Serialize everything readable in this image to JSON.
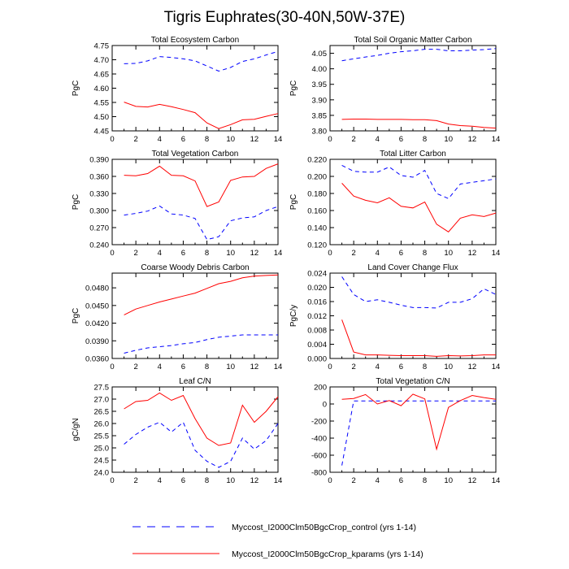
{
  "figure_title": "Tigris Euphrates(30-40N,50W-37E)",
  "legend": [
    {
      "label": "Myccost_I2000Clm50BgcCrop_control (yrs 1-14)",
      "color": "#0000ff",
      "dash": "dashed"
    },
    {
      "label": "Myccost_I2000Clm50BgcCrop_kparams (yrs 1-14)",
      "color": "#ff0000",
      "dash": "solid"
    }
  ],
  "chart_data": [
    {
      "type": "line",
      "title": "Total Ecosystem Carbon",
      "xlabel": "",
      "ylabel": "PgC",
      "xlim": [
        0,
        14
      ],
      "ylim": [
        4.45,
        4.75
      ],
      "xticks": [
        0,
        2,
        4,
        6,
        8,
        10,
        12,
        14
      ],
      "yticks": [
        "4.45",
        "4.50",
        "4.55",
        "4.60",
        "4.65",
        "4.70",
        "4.75"
      ],
      "x": [
        1,
        2,
        3,
        4,
        5,
        6,
        7,
        8,
        9,
        10,
        11,
        12,
        13,
        14
      ],
      "series": [
        {
          "name": "control",
          "values": [
            4.686,
            4.687,
            4.696,
            4.711,
            4.708,
            4.703,
            4.696,
            4.678,
            4.66,
            4.673,
            4.694,
            4.703,
            4.717,
            4.729
          ]
        },
        {
          "name": "kparams",
          "values": [
            4.551,
            4.536,
            4.534,
            4.543,
            4.535,
            4.525,
            4.514,
            4.478,
            4.458,
            4.472,
            4.489,
            4.491,
            4.501,
            4.511
          ]
        }
      ]
    },
    {
      "type": "line",
      "title": "Total Soil Organic Matter Carbon",
      "xlabel": "",
      "ylabel": "PgC",
      "xlim": [
        0,
        14
      ],
      "ylim": [
        3.8,
        4.075
      ],
      "xticks": [
        0,
        2,
        4,
        6,
        8,
        10,
        12,
        14
      ],
      "yticks": [
        "3.80",
        "3.85",
        "3.90",
        "3.95",
        "4.00",
        "4.05"
      ],
      "x": [
        1,
        2,
        3,
        4,
        5,
        6,
        7,
        8,
        9,
        10,
        11,
        12,
        13,
        14
      ],
      "series": [
        {
          "name": "control",
          "values": [
            4.026,
            4.032,
            4.038,
            4.043,
            4.05,
            4.055,
            4.058,
            4.063,
            4.063,
            4.058,
            4.058,
            4.06,
            4.062,
            4.065
          ]
        },
        {
          "name": "kparams",
          "values": [
            3.837,
            3.838,
            3.838,
            3.837,
            3.837,
            3.837,
            3.836,
            3.836,
            3.833,
            3.822,
            3.817,
            3.815,
            3.811,
            3.809
          ]
        }
      ]
    },
    {
      "type": "line",
      "title": "Total Vegetation Carbon",
      "xlabel": "",
      "ylabel": "PgC",
      "xlim": [
        0,
        14
      ],
      "ylim": [
        0.24,
        0.39
      ],
      "xticks": [
        0,
        2,
        4,
        6,
        8,
        10,
        12,
        14
      ],
      "yticks": [
        "0.240",
        "0.270",
        "0.300",
        "0.330",
        "0.360",
        "0.390"
      ],
      "x": [
        1,
        2,
        3,
        4,
        5,
        6,
        7,
        8,
        9,
        10,
        11,
        12,
        13,
        14
      ],
      "series": [
        {
          "name": "control",
          "values": [
            0.292,
            0.295,
            0.299,
            0.308,
            0.294,
            0.292,
            0.286,
            0.249,
            0.254,
            0.282,
            0.287,
            0.289,
            0.3,
            0.307
          ]
        },
        {
          "name": "kparams",
          "values": [
            0.362,
            0.361,
            0.365,
            0.378,
            0.362,
            0.361,
            0.352,
            0.307,
            0.315,
            0.353,
            0.359,
            0.36,
            0.374,
            0.382
          ]
        }
      ]
    },
    {
      "type": "line",
      "title": "Total Litter Carbon",
      "xlabel": "",
      "ylabel": "PgC",
      "xlim": [
        0,
        14
      ],
      "ylim": [
        0.12,
        0.22
      ],
      "xticks": [
        0,
        2,
        4,
        6,
        8,
        10,
        12,
        14
      ],
      "yticks": [
        "0.120",
        "0.140",
        "0.160",
        "0.180",
        "0.200",
        "0.220"
      ],
      "x": [
        1,
        2,
        3,
        4,
        5,
        6,
        7,
        8,
        9,
        10,
        11,
        12,
        13,
        14
      ],
      "series": [
        {
          "name": "control",
          "values": [
            0.213,
            0.206,
            0.205,
            0.205,
            0.211,
            0.201,
            0.199,
            0.207,
            0.18,
            0.174,
            0.191,
            0.193,
            0.195,
            0.197
          ]
        },
        {
          "name": "kparams",
          "values": [
            0.192,
            0.177,
            0.172,
            0.169,
            0.175,
            0.165,
            0.163,
            0.17,
            0.144,
            0.135,
            0.151,
            0.155,
            0.153,
            0.157
          ]
        }
      ]
    },
    {
      "type": "line",
      "title": "Coarse Woody Debris Carbon",
      "xlabel": "",
      "ylabel": "PgC",
      "xlim": [
        0,
        14
      ],
      "ylim": [
        0.036,
        0.0505
      ],
      "xticks": [
        0,
        2,
        4,
        6,
        8,
        10,
        12,
        14
      ],
      "yticks": [
        "0.0360",
        "0.0390",
        "0.0420",
        "0.0450",
        "0.0480"
      ],
      "x": [
        1,
        2,
        3,
        4,
        5,
        6,
        7,
        8,
        9,
        10,
        11,
        12,
        13,
        14
      ],
      "series": [
        {
          "name": "control",
          "values": [
            0.0369,
            0.0374,
            0.0378,
            0.038,
            0.0382,
            0.0385,
            0.0387,
            0.0392,
            0.0396,
            0.0398,
            0.04,
            0.04,
            0.04,
            0.04
          ]
        },
        {
          "name": "kparams",
          "values": [
            0.0434,
            0.0444,
            0.045,
            0.0456,
            0.0461,
            0.0466,
            0.0471,
            0.0479,
            0.0487,
            0.0491,
            0.0497,
            0.05,
            0.0501,
            0.0502
          ]
        }
      ]
    },
    {
      "type": "line",
      "title": "Land Cover Change Flux",
      "xlabel": "",
      "ylabel": "PgC/y",
      "xlim": [
        0,
        14
      ],
      "ylim": [
        0,
        0.024
      ],
      "xticks": [
        0,
        2,
        4,
        6,
        8,
        10,
        12,
        14
      ],
      "yticks": [
        "0.000",
        "0.004",
        "0.008",
        "0.012",
        "0.016",
        "0.020",
        "0.024"
      ],
      "x": [
        1,
        2,
        3,
        4,
        5,
        6,
        7,
        8,
        9,
        10,
        11,
        12,
        13,
        14
      ],
      "series": [
        {
          "name": "control",
          "values": [
            0.023,
            0.018,
            0.016,
            0.0165,
            0.0158,
            0.015,
            0.0143,
            0.0143,
            0.0142,
            0.0158,
            0.0158,
            0.0168,
            0.0196,
            0.018
          ]
        },
        {
          "name": "kparams",
          "values": [
            0.0109,
            0.0018,
            0.001,
            0.001,
            0.0009,
            0.0008,
            0.0008,
            0.0008,
            0.0006,
            0.0008,
            0.0007,
            0.0008,
            0.001,
            0.001
          ]
        }
      ]
    },
    {
      "type": "line",
      "title": "Leaf C/N",
      "xlabel": "",
      "ylabel": "gC/gN",
      "xlim": [
        0,
        14
      ],
      "ylim": [
        24.0,
        27.5
      ],
      "xticks": [
        0,
        2,
        4,
        6,
        8,
        10,
        12,
        14
      ],
      "yticks": [
        "24.0",
        "24.5",
        "25.0",
        "25.5",
        "26.0",
        "26.5",
        "27.0",
        "27.5"
      ],
      "x": [
        1,
        2,
        3,
        4,
        5,
        6,
        7,
        8,
        9,
        10,
        11,
        12,
        13,
        14
      ],
      "series": [
        {
          "name": "control",
          "values": [
            25.15,
            25.55,
            25.85,
            26.05,
            25.65,
            26.05,
            24.9,
            24.45,
            24.2,
            24.45,
            25.4,
            24.95,
            25.3,
            26.0
          ]
        },
        {
          "name": "kparams",
          "values": [
            26.6,
            26.9,
            26.95,
            27.25,
            26.95,
            27.15,
            26.2,
            25.4,
            25.1,
            25.2,
            26.75,
            26.05,
            26.5,
            27.1
          ]
        }
      ]
    },
    {
      "type": "line",
      "title": "Total Vegetation C/N",
      "xlabel": "",
      "ylabel": "",
      "xlim": [
        0,
        14
      ],
      "ylim": [
        -800,
        200
      ],
      "xticks": [
        0,
        2,
        4,
        6,
        8,
        10,
        12,
        14
      ],
      "yticks": [
        "-800",
        "-600",
        "-400",
        "-200",
        "0",
        "200"
      ],
      "x": [
        1,
        2,
        3,
        4,
        5,
        6,
        7,
        8,
        9,
        10,
        11,
        12,
        13,
        14
      ],
      "series": [
        {
          "name": "control",
          "values": [
            -720,
            35,
            35,
            35,
            35,
            35,
            35,
            35,
            35,
            35,
            35,
            35,
            35,
            35
          ]
        },
        {
          "name": "kparams",
          "values": [
            55,
            65,
            110,
            0,
            40,
            -20,
            115,
            60,
            -530,
            -40,
            40,
            100,
            75,
            55
          ]
        }
      ]
    }
  ]
}
